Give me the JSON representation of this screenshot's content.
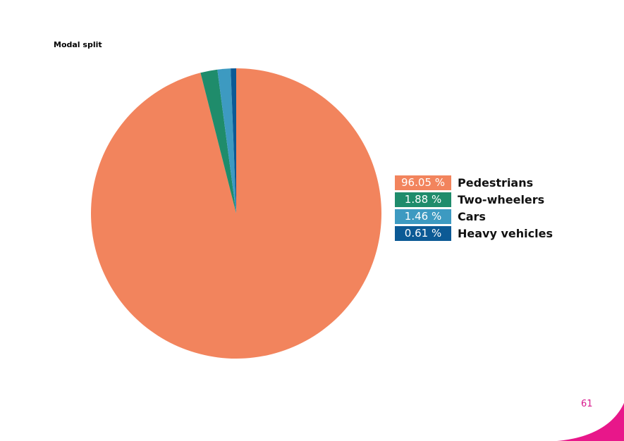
{
  "chart_data": {
    "type": "pie",
    "title": "Modal split",
    "categories": [
      "Pedestrians",
      "Two-wheelers",
      "Cars",
      "Heavy vehicles"
    ],
    "values": [
      96.05,
      1.88,
      1.46,
      0.61
    ],
    "value_labels": [
      "96.05 %",
      "1.88 %",
      "1.46 %",
      "0.61 %"
    ],
    "colors": [
      "#f2845d",
      "#1f8c6b",
      "#3d9ac1",
      "#0c5a95"
    ],
    "legend_placement": "right"
  },
  "page": {
    "number": "61",
    "accent_color": "#e8178a"
  }
}
